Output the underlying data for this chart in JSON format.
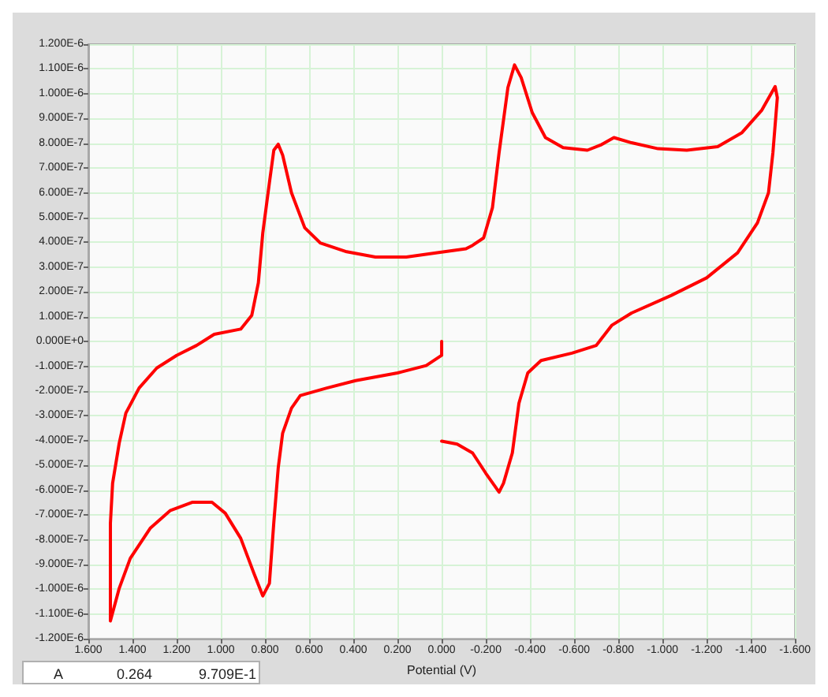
{
  "chart_data": {
    "type": "line",
    "xlabel": "Potential (V)",
    "annotations": [
      "A",
      "0.264",
      "9.709E-1"
    ],
    "xlim": [
      1.6,
      -1.6
    ],
    "xticks": [
      {
        "value": 1.6,
        "label": "1.600"
      },
      {
        "value": 1.4,
        "label": "1.400"
      },
      {
        "value": 1.2,
        "label": "1.200"
      },
      {
        "value": 1.0,
        "label": "1.000"
      },
      {
        "value": 0.8,
        "label": "0.800"
      },
      {
        "value": 0.6,
        "label": "0.600"
      },
      {
        "value": 0.4,
        "label": "0.400"
      },
      {
        "value": 0.2,
        "label": "0.200"
      },
      {
        "value": 0,
        "label": "0.000"
      },
      {
        "value": -0.2,
        "label": "-0.200"
      },
      {
        "value": -0.4,
        "label": "-0.400"
      },
      {
        "value": -0.6,
        "label": "-0.600"
      },
      {
        "value": -0.8,
        "label": "-0.800"
      },
      {
        "value": -1.0,
        "label": "-1.000"
      },
      {
        "value": -1.2,
        "label": "-1.200"
      },
      {
        "value": -1.4,
        "label": "-1.400"
      },
      {
        "value": -1.6,
        "label": "-1.600"
      }
    ],
    "ylim": [
      -1.2e-06,
      1.2e-06
    ],
    "yticks": [
      {
        "value": -1.2e-06,
        "label": "-1.200E-6"
      },
      {
        "value": -1.1e-06,
        "label": "-1.100E-6"
      },
      {
        "value": -1e-06,
        "label": "-1.000E-6"
      },
      {
        "value": -9e-07,
        "label": "-9.000E-7"
      },
      {
        "value": -8e-07,
        "label": "-8.000E-7"
      },
      {
        "value": -7e-07,
        "label": "-7.000E-7"
      },
      {
        "value": -6e-07,
        "label": "-6.000E-7"
      },
      {
        "value": -5e-07,
        "label": "-5.000E-7"
      },
      {
        "value": -4e-07,
        "label": "-4.000E-7"
      },
      {
        "value": -3e-07,
        "label": "-3.000E-7"
      },
      {
        "value": -2e-07,
        "label": "-2.000E-7"
      },
      {
        "value": -1e-07,
        "label": "-1.000E-7"
      },
      {
        "value": 0,
        "label": "0.000E+0"
      },
      {
        "value": 1e-07,
        "label": "1.000E-7"
      },
      {
        "value": 2e-07,
        "label": "2.000E-7"
      },
      {
        "value": 3e-07,
        "label": "3.000E-7"
      },
      {
        "value": 4e-07,
        "label": "4.000E-7"
      },
      {
        "value": 5e-07,
        "label": "5.000E-7"
      },
      {
        "value": 6e-07,
        "label": "6.000E-7"
      },
      {
        "value": 7e-07,
        "label": "7.000E-7"
      },
      {
        "value": 8e-07,
        "label": "8.000E-7"
      },
      {
        "value": 9e-07,
        "label": "9.000E-7"
      },
      {
        "value": 1e-06,
        "label": "1.000E-6"
      },
      {
        "value": 1.1e-06,
        "label": "1.100E-6"
      },
      {
        "value": 1.2e-06,
        "label": "1.200E-6"
      }
    ],
    "grid": true,
    "marker": "none",
    "line_style": "solid",
    "series": [
      {
        "color": "#ff0000",
        "x": [
          0.0,
          0.0,
          0.07,
          0.2,
          0.39,
          0.52,
          0.64,
          0.68,
          0.72,
          0.74,
          0.76,
          0.78,
          0.81,
          0.85,
          0.91,
          0.98,
          1.04,
          1.13,
          1.23,
          1.32,
          1.41,
          1.46,
          1.5,
          1.5,
          1.5,
          1.49,
          1.46,
          1.43,
          1.37,
          1.29,
          1.2,
          1.11,
          1.03,
          0.91,
          0.86,
          0.83,
          0.81,
          0.78,
          0.76,
          0.74,
          0.72,
          0.68,
          0.62,
          0.55,
          0.43,
          0.3,
          0.16,
          0.02,
          -0.11,
          -0.14,
          -0.19,
          -0.23,
          -0.26,
          -0.3,
          -0.33,
          -0.36,
          -0.41,
          -0.47,
          -0.55,
          -0.66,
          -0.72,
          -0.78,
          -0.86,
          -0.98,
          -1.11,
          -1.25,
          -1.36,
          -1.45,
          -1.51,
          -1.52,
          -1.5,
          -1.48,
          -1.43,
          -1.34,
          -1.2,
          -1.04,
          -0.86,
          -0.77,
          -0.7,
          -0.59,
          -0.45,
          -0.39,
          -0.35,
          -0.32,
          -0.28,
          -0.26,
          -0.2,
          -0.14,
          -0.07,
          0.0
        ],
        "values": [
          0,
          -5.6e-08,
          -9.7e-08,
          -1.27e-07,
          -1.58e-07,
          -1.88e-07,
          -2.18e-07,
          -2.69e-07,
          -3.7e-07,
          -5.1e-07,
          -7.3e-07,
          -9.76e-07,
          -1.027e-06,
          -9.36e-07,
          -7.94e-07,
          -6.93e-07,
          -6.49e-07,
          -6.49e-07,
          -6.83e-07,
          -7.54e-07,
          -8.75e-07,
          -9.96e-07,
          -1.128e-06,
          -1.017e-06,
          -7.34e-07,
          -5.72e-07,
          -4.1e-07,
          -2.89e-07,
          -1.88e-07,
          -1.07e-07,
          -5.6e-08,
          -1.6e-08,
          2.9e-08,
          5e-08,
          1.05e-07,
          2.37e-07,
          4.38e-07,
          6.41e-07,
          7.72e-07,
          7.96e-07,
          7.52e-07,
          6e-07,
          4.59e-07,
          3.98e-07,
          3.62e-07,
          3.41e-07,
          3.41e-07,
          3.58e-07,
          3.74e-07,
          3.88e-07,
          4.18e-07,
          5.4e-07,
          7.62e-07,
          1.025e-06,
          1.116e-06,
          1.065e-06,
          9.24e-07,
          8.23e-07,
          7.82e-07,
          7.72e-07,
          7.93e-07,
          8.23e-07,
          8.02e-07,
          7.78e-07,
          7.72e-07,
          7.86e-07,
          8.43e-07,
          9.34e-07,
          1.029e-06,
          9.84e-07,
          7.62e-07,
          6e-07,
          4.79e-07,
          3.58e-07,
          2.57e-07,
          1.86e-07,
          1.15e-07,
          6.5e-08,
          -1.6e-08,
          -4.7e-08,
          -7.7e-08,
          -1.27e-07,
          -2.49e-07,
          -4.5e-07,
          -5.72e-07,
          -6.08e-07,
          -5.32e-07,
          -4.5e-07,
          -4.14e-07,
          -4.02e-07
        ]
      }
    ]
  }
}
